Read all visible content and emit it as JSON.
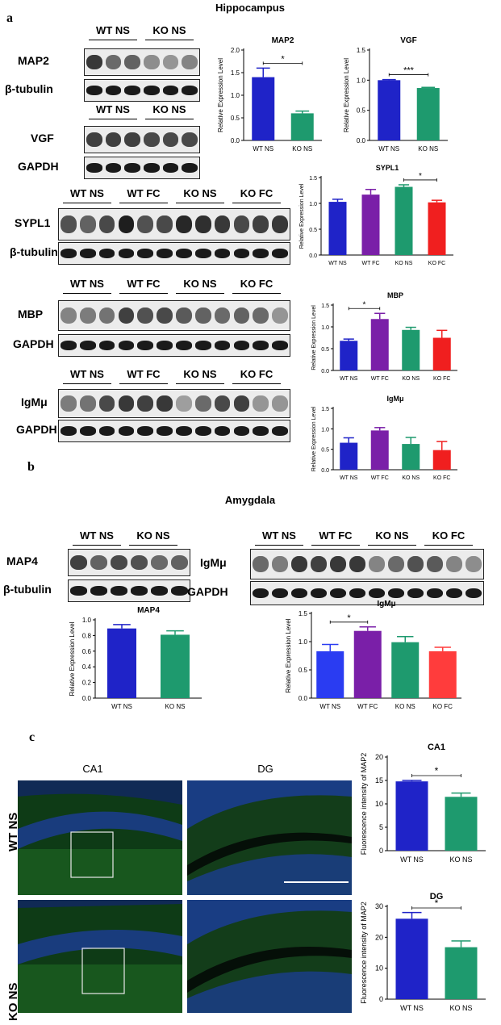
{
  "colors": {
    "wt_ns": "#1f23c8",
    "wt_fc": "#7a1fa8",
    "ko_ns": "#1e9a6e",
    "ko_fc": "#f01f1f",
    "wt_ns_light": "#2a3cf2",
    "ko_fc_light": "#ff3c3c"
  },
  "panels": {
    "a": "a",
    "b": "b",
    "c": "c"
  },
  "sections": {
    "hippocampus": "Hippocampus",
    "amygdala": "Amygdala"
  },
  "blots": {
    "map2": {
      "groups": [
        "WT NS",
        "KO NS"
      ],
      "label": "MAP2",
      "ref": "β-tubulin",
      "lanes": 6,
      "intensity": [
        0.85,
        0.55,
        0.6,
        0.35,
        0.3,
        0.4
      ]
    },
    "vgf": {
      "groups": [
        "WT NS",
        "KO NS"
      ],
      "label": "VGF",
      "ref": "GAPDH",
      "lanes": 6,
      "intensity": [
        0.8,
        0.8,
        0.8,
        0.75,
        0.75,
        0.75
      ]
    },
    "sypl1": {
      "groups": [
        "WT NS",
        "WT FC",
        "KO NS",
        "KO FC"
      ],
      "label": "SYPL1",
      "ref": "β-tubulin",
      "lanes": 12,
      "intensity": [
        0.7,
        0.6,
        0.75,
        1,
        0.7,
        0.75,
        0.95,
        0.9,
        0.85,
        0.75,
        0.8,
        0.85
      ]
    },
    "mbp": {
      "groups": [
        "WT NS",
        "WT FC",
        "KO NS",
        "KO FC"
      ],
      "label": "MBP",
      "ref": "GAPDH",
      "lanes": 12,
      "intensity": [
        0.4,
        0.45,
        0.5,
        0.8,
        0.7,
        0.75,
        0.65,
        0.6,
        0.55,
        0.6,
        0.55,
        0.3
      ]
    },
    "igmu_h": {
      "groups": [
        "WT NS",
        "WT FC",
        "KO NS",
        "KO FC"
      ],
      "label": "IgMμ",
      "ref": "GAPDH",
      "lanes": 12,
      "intensity": [
        0.45,
        0.5,
        0.75,
        0.85,
        0.8,
        0.85,
        0.25,
        0.55,
        0.75,
        0.8,
        0.3,
        0.3
      ]
    },
    "map4": {
      "groups": [
        "WT NS",
        "KO NS"
      ],
      "label": "MAP4",
      "ref": "β-tubulin",
      "lanes": 6,
      "intensity": [
        0.8,
        0.6,
        0.75,
        0.7,
        0.55,
        0.6
      ]
    },
    "igmu_a": {
      "groups": [
        "WT NS",
        "WT FC",
        "KO NS",
        "KO FC"
      ],
      "label": "IgMμ",
      "ref": "GAPDH",
      "lanes": 12,
      "intensity": [
        0.55,
        0.45,
        0.85,
        0.8,
        0.85,
        0.85,
        0.4,
        0.55,
        0.7,
        0.65,
        0.4,
        0.35
      ]
    }
  },
  "micro": {
    "cols": [
      "CA1",
      "DG"
    ],
    "rows": [
      "WT NS",
      "KO NS"
    ]
  },
  "chart_data": [
    {
      "id": "map2",
      "type": "bar",
      "title": "MAP2",
      "ylabel": "Relative Expression Level",
      "categories": [
        "WT NS",
        "KO NS"
      ],
      "values": [
        1.4,
        0.6
      ],
      "errors": [
        0.2,
        0.05
      ],
      "ylim": [
        0,
        2.0
      ],
      "yticks": [
        "0.0",
        "0.5",
        "1.0",
        "1.5",
        "2.0"
      ],
      "sig": [
        {
          "from": 0,
          "to": 1,
          "label": "*"
        }
      ],
      "colors": [
        "#1f23c8",
        "#1e9a6e"
      ]
    },
    {
      "id": "vgf",
      "type": "bar",
      "title": "VGF",
      "ylabel": "Relative Expression Level",
      "categories": [
        "WT NS",
        "KO NS"
      ],
      "values": [
        1.0,
        0.87
      ],
      "errors": [
        0.01,
        0.01
      ],
      "ylim": [
        0,
        1.5
      ],
      "yticks": [
        "0.0",
        "0.5",
        "1.0",
        "1.5"
      ],
      "sig": [
        {
          "from": 0,
          "to": 1,
          "label": "***"
        }
      ],
      "colors": [
        "#1f23c8",
        "#1e9a6e"
      ]
    },
    {
      "id": "sypl1",
      "type": "bar",
      "title": "SYPL1",
      "ylabel": "Relative Expression Level",
      "categories": [
        "WT NS",
        "WT FC",
        "KO NS",
        "KO FC"
      ],
      "values": [
        1.03,
        1.17,
        1.32,
        1.02
      ],
      "errors": [
        0.05,
        0.1,
        0.04,
        0.04
      ],
      "ylim": [
        0,
        1.5
      ],
      "yticks": [
        "0.0",
        "0.5",
        "1.0",
        "1.5"
      ],
      "sig": [
        {
          "from": 2,
          "to": 3,
          "label": "*"
        }
      ],
      "colors": [
        "#1f23c8",
        "#7a1fa8",
        "#1e9a6e",
        "#f01f1f"
      ]
    },
    {
      "id": "mbp",
      "type": "bar",
      "title": "MBP",
      "ylabel": "Relative Expression Level",
      "categories": [
        "WT NS",
        "WT FC",
        "KO NS",
        "KO FC"
      ],
      "values": [
        0.68,
        1.18,
        0.93,
        0.75
      ],
      "errors": [
        0.04,
        0.13,
        0.06,
        0.17
      ],
      "ylim": [
        0,
        1.5
      ],
      "yticks": [
        "0.0",
        "0.5",
        "1.0",
        "1.5"
      ],
      "sig": [
        {
          "from": 0,
          "to": 1,
          "label": "*"
        }
      ],
      "colors": [
        "#1f23c8",
        "#7a1fa8",
        "#1e9a6e",
        "#f01f1f"
      ]
    },
    {
      "id": "igmu_h",
      "type": "bar",
      "title": "IgMμ",
      "ylabel": "Relative Expression Level",
      "categories": [
        "WT NS",
        "WT FC",
        "KO NS",
        "KO FC"
      ],
      "values": [
        0.66,
        0.96,
        0.63,
        0.48
      ],
      "errors": [
        0.12,
        0.07,
        0.16,
        0.21
      ],
      "ylim": [
        0,
        1.5
      ],
      "yticks": [
        "0.0",
        "0.5",
        "1.0",
        "1.5"
      ],
      "sig": [],
      "colors": [
        "#1f23c8",
        "#7a1fa8",
        "#1e9a6e",
        "#f01f1f"
      ]
    },
    {
      "id": "map4",
      "type": "bar",
      "title": "MAP4",
      "ylabel": "Relative Expression Level",
      "categories": [
        "WT NS",
        "KO NS"
      ],
      "values": [
        0.89,
        0.81
      ],
      "errors": [
        0.05,
        0.05
      ],
      "ylim": [
        0,
        1.0
      ],
      "yticks": [
        "0.0",
        "0.2",
        "0.4",
        "0.6",
        "0.8",
        "1.0"
      ],
      "sig": [],
      "colors": [
        "#1f23c8",
        "#1e9a6e"
      ]
    },
    {
      "id": "igmu_a",
      "type": "bar",
      "title": "IgMμ",
      "ylabel": "Relative Expression Level",
      "categories": [
        "WT NS",
        "WT FC",
        "KO NS",
        "KO FC"
      ],
      "values": [
        0.83,
        1.19,
        0.99,
        0.83
      ],
      "errors": [
        0.12,
        0.07,
        0.1,
        0.07
      ],
      "ylim": [
        0,
        1.5
      ],
      "yticks": [
        "0.0",
        "0.5",
        "1.0",
        "1.5"
      ],
      "sig": [
        {
          "from": 0,
          "to": 1,
          "label": "*"
        }
      ],
      "colors": [
        "#2a3cf2",
        "#7a1fa8",
        "#1e9a6e",
        "#ff3c3c"
      ]
    },
    {
      "id": "ca1",
      "type": "bar",
      "title": "CA1",
      "ylabel": "Fluorescence intensity of MAP2",
      "categories": [
        "WT NS",
        "KO NS"
      ],
      "values": [
        14.8,
        11.5
      ],
      "errors": [
        0.2,
        0.8
      ],
      "ylim": [
        0,
        20
      ],
      "yticks": [
        "0",
        "5",
        "10",
        "15",
        "20"
      ],
      "sig": [
        {
          "from": 0,
          "to": 1,
          "label": "*"
        }
      ],
      "colors": [
        "#1f23c8",
        "#1e9a6e"
      ]
    },
    {
      "id": "dg",
      "type": "bar",
      "title": "DG",
      "ylabel": "Fluorescence intensity of MAP2",
      "categories": [
        "WT NS",
        "KO NS"
      ],
      "values": [
        26,
        16.8
      ],
      "errors": [
        2.0,
        2.0
      ],
      "ylim": [
        0,
        30
      ],
      "yticks": [
        "0",
        "10",
        "20",
        "30"
      ],
      "sig": [
        {
          "from": 0,
          "to": 1,
          "label": "*"
        }
      ],
      "colors": [
        "#1f23c8",
        "#1e9a6e"
      ]
    }
  ]
}
